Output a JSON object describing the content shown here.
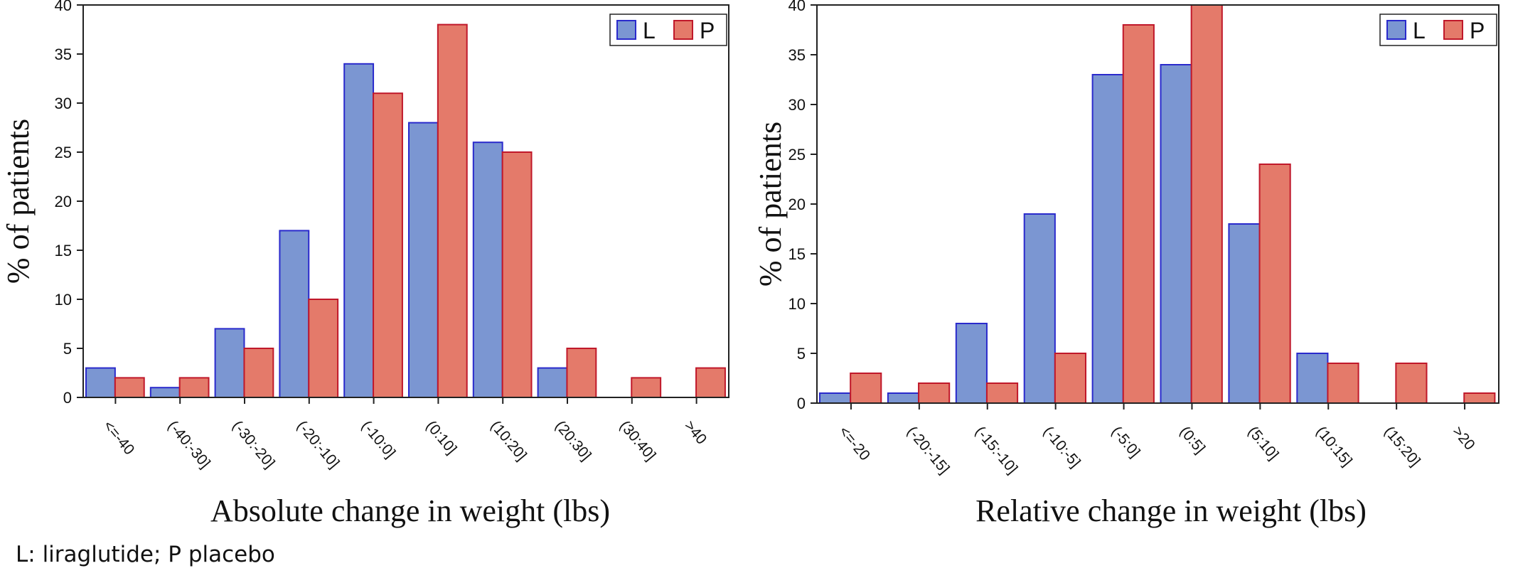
{
  "footnote": "L: liraglutide; P placebo",
  "colors": {
    "L_fill": "#7b96d2",
    "L_stroke": "#2a2acc",
    "P_fill": "#e47a6a",
    "P_stroke": "#c0182a"
  },
  "chart_data": [
    {
      "type": "bar",
      "title": "",
      "xlabel": "Absolute change in weight (lbs)",
      "ylabel": "% of patients",
      "ylim": [
        0,
        40
      ],
      "yticks": [
        0,
        5,
        10,
        15,
        20,
        25,
        30,
        35,
        40
      ],
      "categories": [
        "<=-40",
        "(-40:-30]",
        "(-30:-20]",
        "(-20:-10]",
        "(-10:0]",
        "(0:10]",
        "(10:20]",
        "(20:30]",
        "(30:40]",
        ">40"
      ],
      "series": [
        {
          "name": "L",
          "values": [
            3,
            1,
            7,
            17,
            34,
            28,
            26,
            3,
            0,
            0
          ]
        },
        {
          "name": "P",
          "values": [
            2,
            2,
            5,
            10,
            31,
            38,
            25,
            5,
            2,
            3
          ]
        }
      ],
      "legend": "top-right",
      "grid": false
    },
    {
      "type": "bar",
      "title": "",
      "xlabel": "Relative change in weight (lbs)",
      "ylabel": "% of patients",
      "ylim": [
        0,
        40
      ],
      "yticks": [
        0,
        5,
        10,
        15,
        20,
        25,
        30,
        35,
        40
      ],
      "categories": [
        "<=-20",
        "(-20:-15]",
        "(-15:-10]",
        "(-10:-5]",
        "(-5:0]",
        "(0:5]",
        "(5:10]",
        "(10:15]",
        "(15:20]",
        ">20"
      ],
      "series": [
        {
          "name": "L",
          "values": [
            1,
            1,
            8,
            19,
            33,
            34,
            18,
            5,
            0,
            0
          ]
        },
        {
          "name": "P",
          "values": [
            3,
            2,
            2,
            5,
            38,
            40,
            24,
            4,
            4,
            1
          ]
        }
      ],
      "legend": "top-right",
      "grid": false
    }
  ]
}
